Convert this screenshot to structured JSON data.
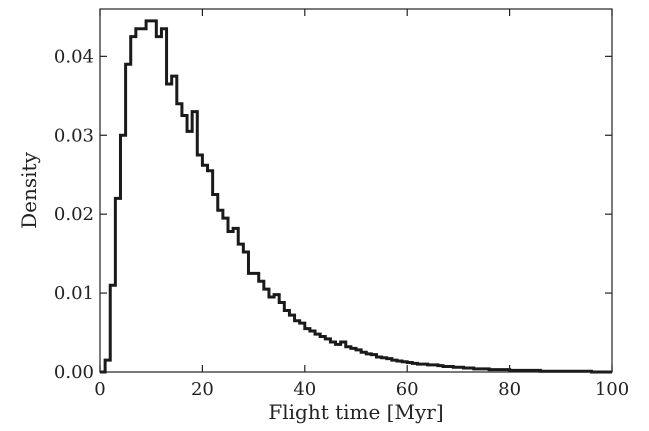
{
  "chart_data": {
    "type": "histogram",
    "title": "",
    "xlabel": "Flight time [Myr]",
    "ylabel": "Density",
    "xlim": [
      0,
      100
    ],
    "ylim": [
      0,
      0.046
    ],
    "grid": false,
    "xticks": [
      0,
      20,
      40,
      60,
      80,
      100
    ],
    "xtick_labels": [
      "0",
      "20",
      "40",
      "60",
      "80",
      "100"
    ],
    "yticks": [
      0,
      0.01,
      0.02,
      0.03,
      0.04
    ],
    "ytick_labels": [
      "0.00",
      "0.01",
      "0.02",
      "0.03",
      "0.04"
    ],
    "bin_width": 1,
    "bin_start": 0,
    "values": [
      0.0,
      0.0015,
      0.011,
      0.022,
      0.03,
      0.039,
      0.0425,
      0.0435,
      0.0435,
      0.0445,
      0.0445,
      0.0425,
      0.0435,
      0.0365,
      0.0375,
      0.034,
      0.0325,
      0.0305,
      0.033,
      0.0275,
      0.0262,
      0.0255,
      0.0225,
      0.0205,
      0.0195,
      0.0178,
      0.0182,
      0.0162,
      0.0152,
      0.0125,
      0.0125,
      0.0115,
      0.0105,
      0.0095,
      0.0098,
      0.0088,
      0.0078,
      0.0072,
      0.0065,
      0.0062,
      0.0055,
      0.0052,
      0.0048,
      0.0045,
      0.0042,
      0.0038,
      0.0035,
      0.0038,
      0.0032,
      0.003,
      0.0028,
      0.0025,
      0.0023,
      0.0022,
      0.0019,
      0.0018,
      0.0017,
      0.0015,
      0.0014,
      0.0013,
      0.0012,
      0.0011,
      0.001,
      0.001,
      0.0009,
      0.0009,
      0.0008,
      0.0007,
      0.0007,
      0.0006,
      0.0006,
      0.0005,
      0.0005,
      0.0004,
      0.0004,
      0.0004,
      0.0003,
      0.0003,
      0.0003,
      0.0003,
      0.0002,
      0.0002,
      0.0002,
      0.0002,
      0.0002,
      0.0002,
      0.0001,
      0.0001,
      0.0001,
      0.0001,
      0.0001,
      0.0001,
      0.0001,
      0.0001,
      0.0001,
      0.0001,
      0.0,
      0.0,
      0.0,
      0.0
    ],
    "color": "#1a1a1a"
  }
}
